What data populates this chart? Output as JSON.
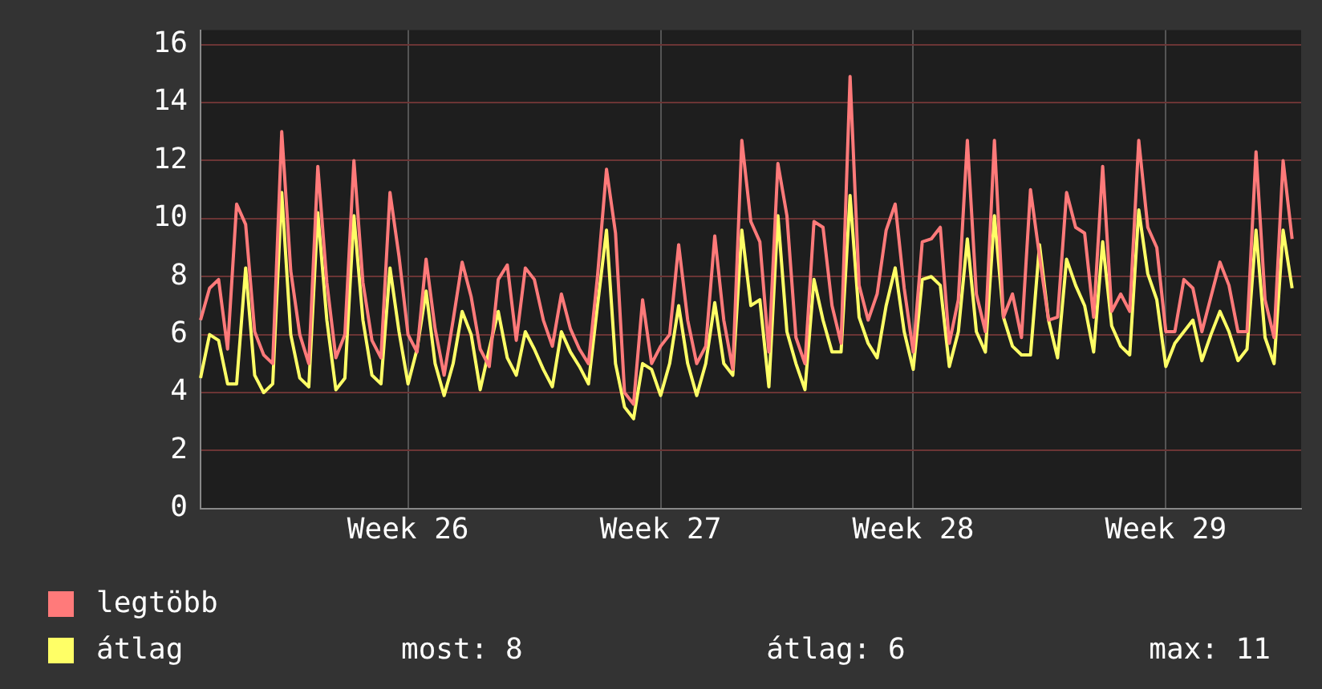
{
  "chart_data": {
    "type": "line",
    "categories": [
      null,
      null,
      null,
      null,
      null,
      null,
      null,
      null,
      null,
      null,
      null,
      null,
      null,
      null,
      null,
      null,
      null,
      null,
      null,
      null,
      null,
      null,
      null,
      "Week 26",
      null,
      null,
      null,
      null,
      null,
      null,
      null,
      null,
      null,
      null,
      null,
      null,
      null,
      null,
      null,
      null,
      null,
      null,
      null,
      null,
      null,
      null,
      null,
      null,
      null,
      null,
      null,
      "Week 27",
      null,
      null,
      null,
      null,
      null,
      null,
      null,
      null,
      null,
      null,
      null,
      null,
      null,
      null,
      null,
      null,
      null,
      null,
      null,
      null,
      null,
      null,
      null,
      null,
      null,
      null,
      null,
      "Week 28",
      null,
      null,
      null,
      null,
      null,
      null,
      null,
      null,
      null,
      null,
      null,
      null,
      null,
      null,
      null,
      null,
      null,
      null,
      null,
      null,
      null,
      null,
      null,
      null,
      null,
      null,
      null,
      "Week 29",
      null,
      null,
      null,
      null,
      null,
      null,
      null,
      null,
      null,
      null,
      null,
      null,
      null,
      null,
      null
    ],
    "ylim": [
      0,
      16.5
    ],
    "yticks": [
      0,
      2,
      4,
      6,
      8,
      10,
      12,
      14,
      16
    ],
    "grid": true,
    "legend": "bottom left",
    "annotations": [
      "most: 8",
      "átlag: 6",
      "max: 11"
    ],
    "series": [
      {
        "name": "legtöbb",
        "color": "#ff7a7a",
        "values": [
          6.5,
          7.6,
          7.9,
          5.5,
          10.5,
          9.8,
          6.1,
          5.3,
          5.0,
          13.0,
          8.2,
          6.0,
          5.0,
          11.8,
          7.8,
          5.2,
          6.0,
          12.0,
          7.8,
          5.8,
          5.2,
          10.9,
          8.7,
          6.0,
          5.4,
          8.6,
          6.2,
          4.6,
          6.5,
          8.5,
          7.3,
          5.5,
          4.9,
          7.9,
          8.4,
          5.8,
          8.3,
          7.9,
          6.5,
          5.6,
          7.4,
          6.2,
          5.5,
          5.0,
          8.0,
          11.7,
          9.5,
          4.0,
          3.6,
          7.2,
          5.0,
          5.6,
          6.0,
          9.1,
          6.5,
          5.0,
          5.6,
          9.4,
          6.5,
          4.8,
          12.7,
          9.9,
          9.2,
          5.4,
          11.9,
          10.1,
          5.9,
          5.0,
          9.9,
          9.7,
          7.0,
          5.7,
          14.9,
          7.7,
          6.5,
          7.4,
          9.6,
          10.5,
          7.6,
          5.4,
          9.2,
          9.3,
          9.7,
          5.7,
          7.2,
          12.7,
          7.4,
          6.1,
          12.7,
          6.6,
          7.4,
          5.9,
          11.0,
          8.7,
          6.5,
          6.6,
          10.9,
          9.7,
          9.5,
          6.6,
          11.8,
          6.8,
          7.4,
          6.8,
          12.7,
          9.7,
          9.0,
          6.1,
          6.1,
          7.9,
          7.6,
          6.1,
          7.3,
          8.5,
          7.7,
          6.1,
          6.1,
          12.3,
          7.2,
          5.9,
          12.0,
          9.3,
          null
        ]
      },
      {
        "name": "átlag",
        "color": "#ffff66",
        "values": [
          4.5,
          6.0,
          5.8,
          4.3,
          4.3,
          8.3,
          4.6,
          4.0,
          4.3,
          10.9,
          6.0,
          4.5,
          4.2,
          10.2,
          6.5,
          4.1,
          4.5,
          10.1,
          6.5,
          4.6,
          4.3,
          8.3,
          6.1,
          4.3,
          5.5,
          7.5,
          5.0,
          3.9,
          5.0,
          6.8,
          6.0,
          4.1,
          5.5,
          6.8,
          5.2,
          4.6,
          6.1,
          5.5,
          4.8,
          4.2,
          6.1,
          5.4,
          4.9,
          4.3,
          7.0,
          9.6,
          5.0,
          3.5,
          3.1,
          5.0,
          4.8,
          3.9,
          5.0,
          7.0,
          5.0,
          3.9,
          5.0,
          7.1,
          5.0,
          4.6,
          9.6,
          7.0,
          7.2,
          4.2,
          10.1,
          6.1,
          5.0,
          4.1,
          7.9,
          6.5,
          5.4,
          5.4,
          10.8,
          6.6,
          5.7,
          5.2,
          7.0,
          8.3,
          6.1,
          4.8,
          7.9,
          8.0,
          7.7,
          4.9,
          6.1,
          9.3,
          6.1,
          5.4,
          10.1,
          6.6,
          5.6,
          5.3,
          5.3,
          9.1,
          6.5,
          5.2,
          8.6,
          7.7,
          7.0,
          5.4,
          9.2,
          6.3,
          5.6,
          5.3,
          10.3,
          8.1,
          7.2,
          4.9,
          5.7,
          6.1,
          6.5,
          5.1,
          6.0,
          6.8,
          6.1,
          5.1,
          5.5,
          9.6,
          5.9,
          5.0,
          9.6,
          7.6,
          null
        ]
      }
    ]
  }
}
